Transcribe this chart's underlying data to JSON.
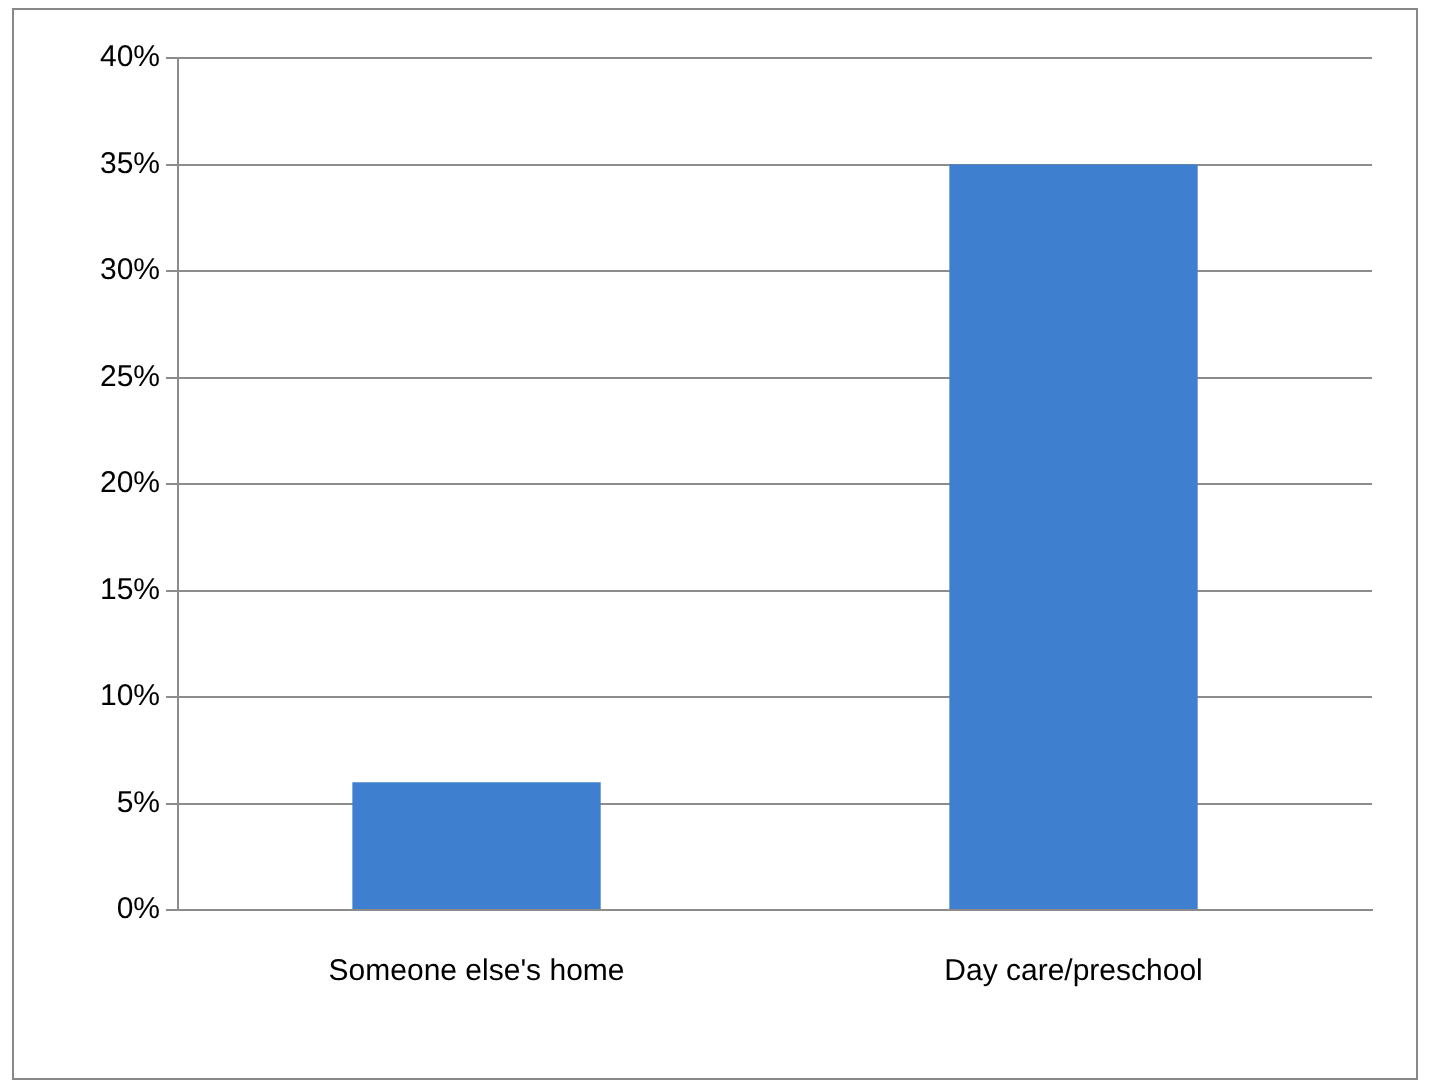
{
  "chart_data": {
    "type": "bar",
    "categories": [
      "Someone else's home",
      "Day care/preschool"
    ],
    "values": [
      6,
      35
    ],
    "color": "#3f7fd0",
    "ylim": [
      0,
      40
    ],
    "yticks": [
      {
        "value": 0,
        "label": "0%"
      },
      {
        "value": 5,
        "label": "5%"
      },
      {
        "value": 10,
        "label": "10%"
      },
      {
        "value": 15,
        "label": "15%"
      },
      {
        "value": 20,
        "label": "20%"
      },
      {
        "value": 25,
        "label": "25%"
      },
      {
        "value": 30,
        "label": "30%"
      },
      {
        "value": 35,
        "label": "35%"
      },
      {
        "value": 40,
        "label": "40%"
      }
    ],
    "grid": "y",
    "legend": false
  }
}
